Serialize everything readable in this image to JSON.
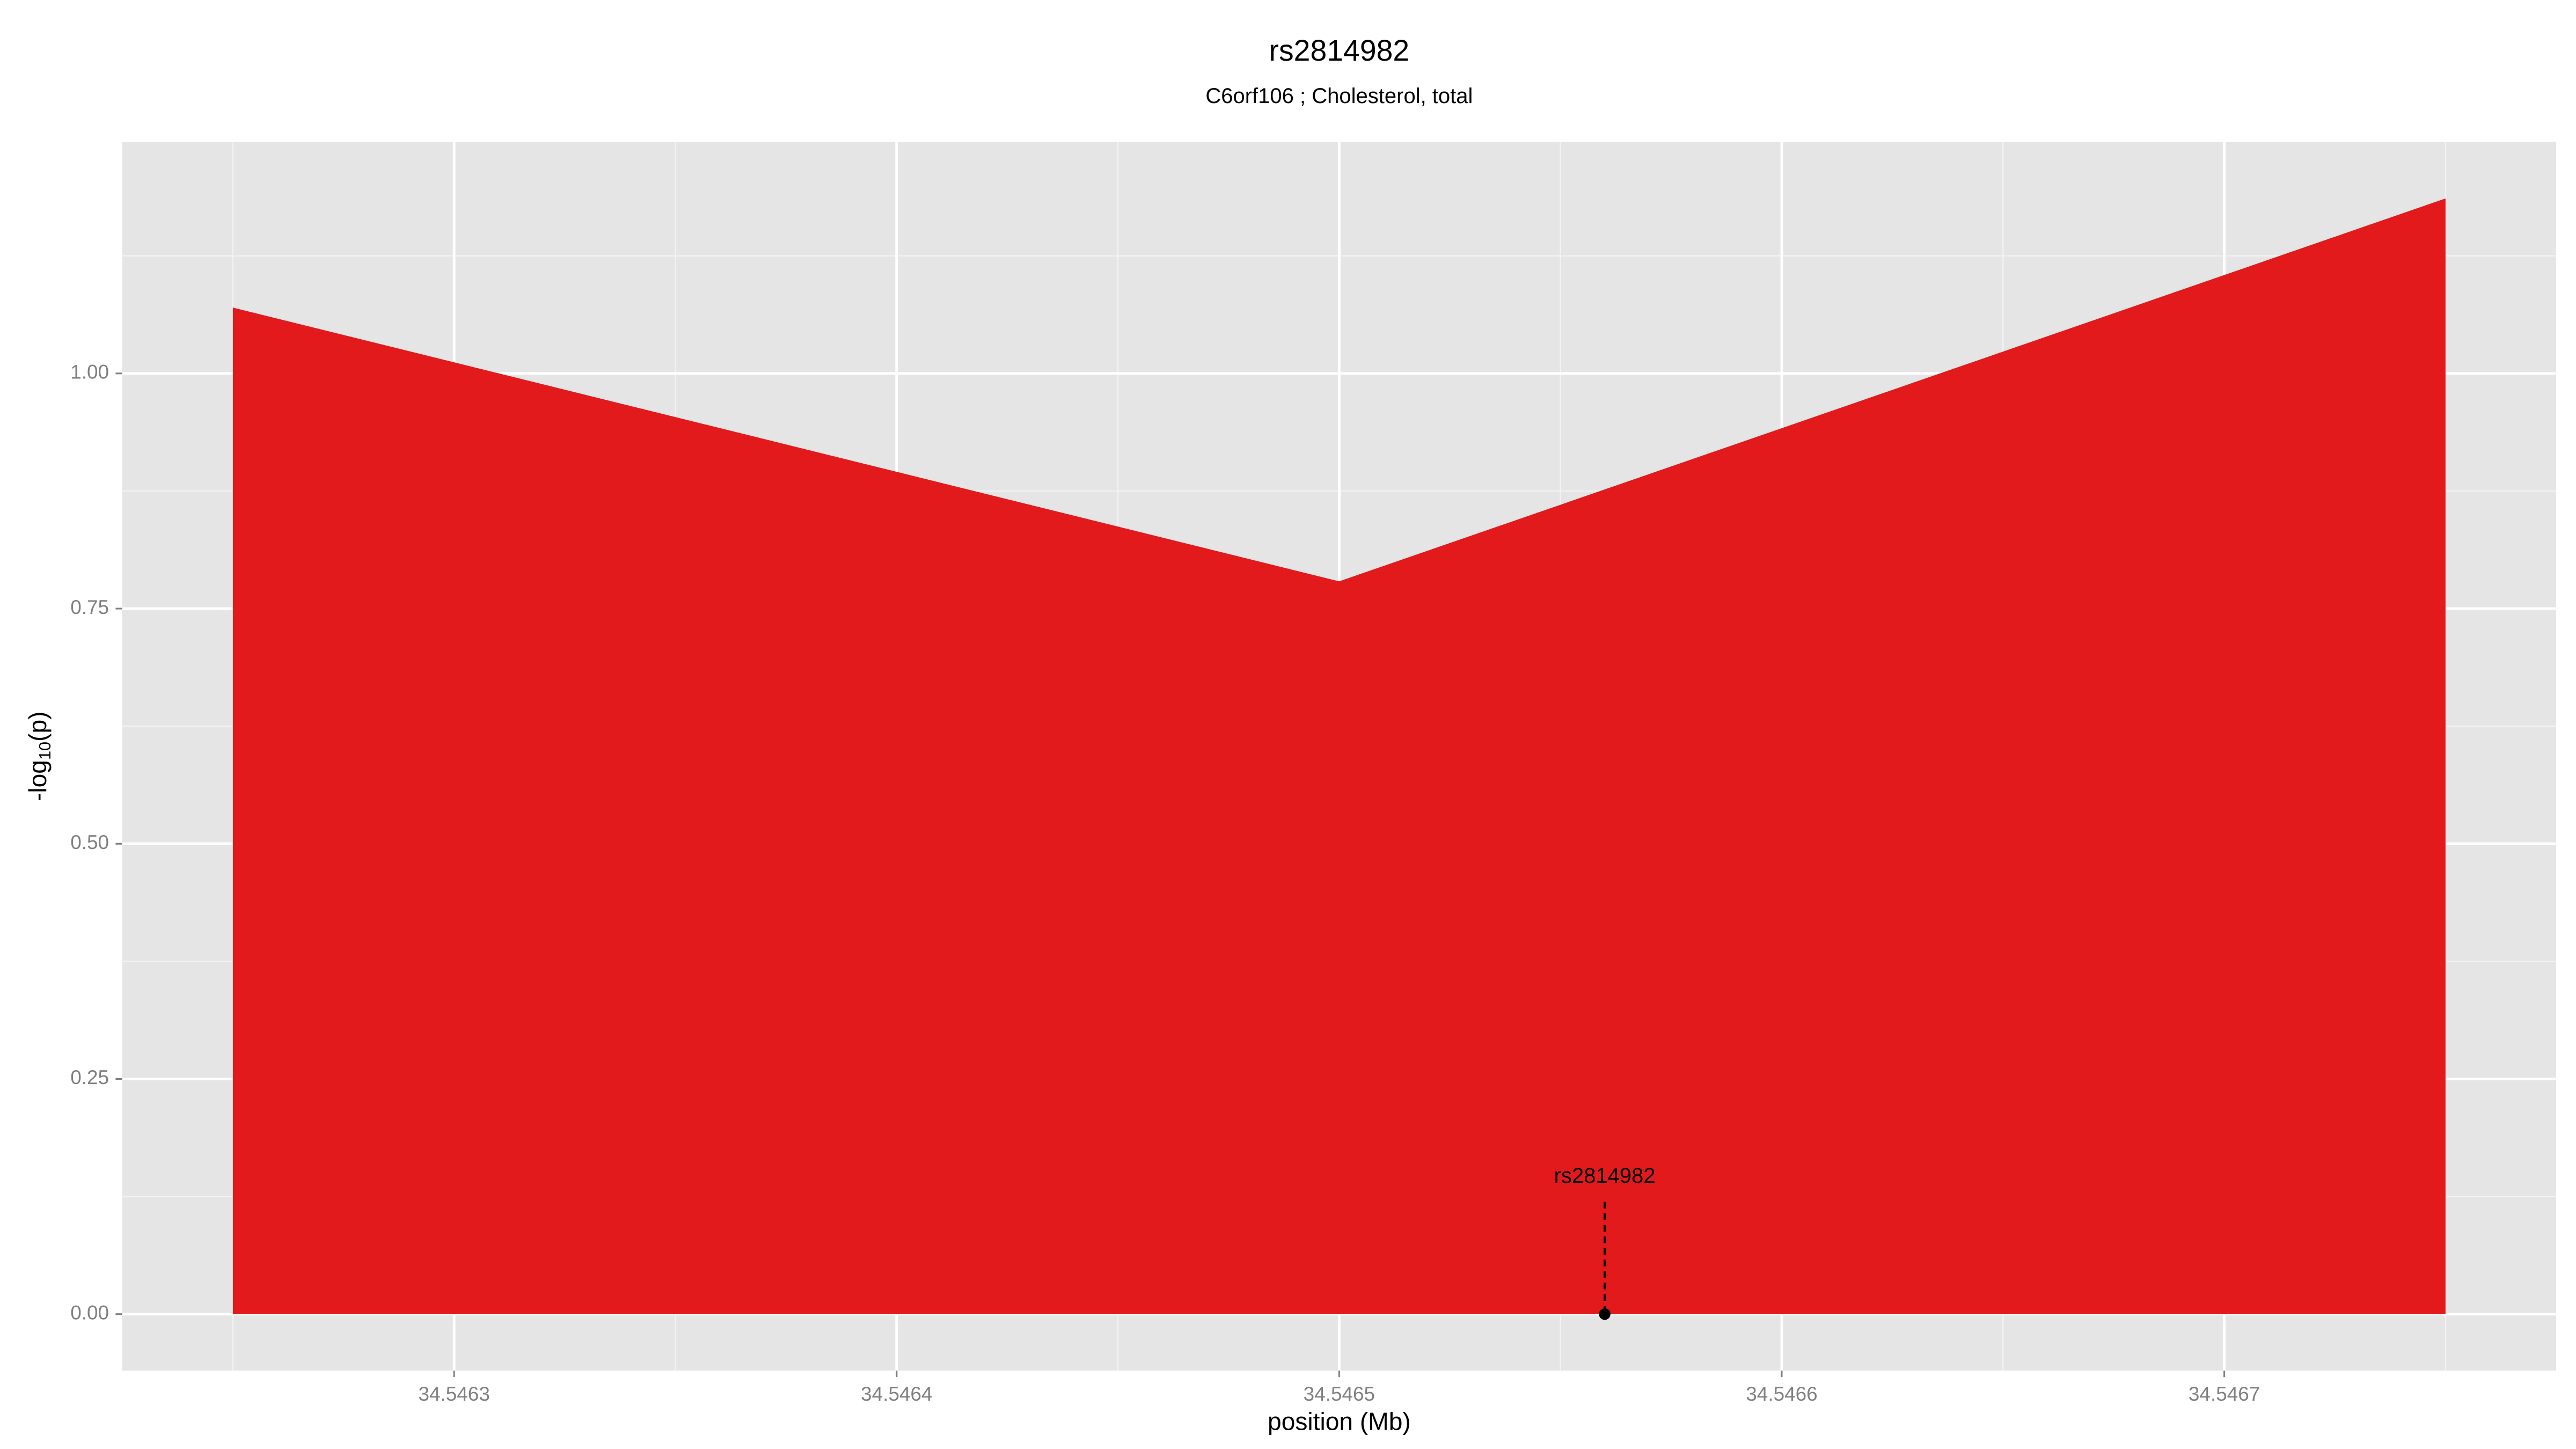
{
  "chart_data": {
    "type": "area",
    "title": "rs2814982",
    "subtitle": "C6orf106 ; Cholesterol, total",
    "x_label": "position (Mb)",
    "y_label": {
      "prefix": "-log",
      "subscript": "10",
      "suffix": "(p)"
    },
    "x": [
      34.54625,
      34.5465,
      34.54675
    ],
    "series": [
      {
        "color": "#e31a1c",
        "values": [
          1.07,
          0.779,
          1.186
        ]
      }
    ],
    "xlim": [
      34.546225,
      34.546775
    ],
    "ylim": [
      -0.06,
      1.246
    ],
    "xticks": [
      34.5463,
      34.5464,
      34.5465,
      34.5466,
      34.5467
    ],
    "yticks": [
      {
        "value": 0,
        "label": "0.00"
      },
      {
        "value": 0.25,
        "label": "0.25"
      },
      {
        "value": 0.5,
        "label": "0.50"
      },
      {
        "value": 0.75,
        "label": "0.75"
      },
      {
        "value": 1,
        "label": "1.00"
      }
    ],
    "grid": true,
    "annotations": [
      {
        "label": "rs2814982",
        "x": 34.54656,
        "y": 0
      }
    ]
  }
}
